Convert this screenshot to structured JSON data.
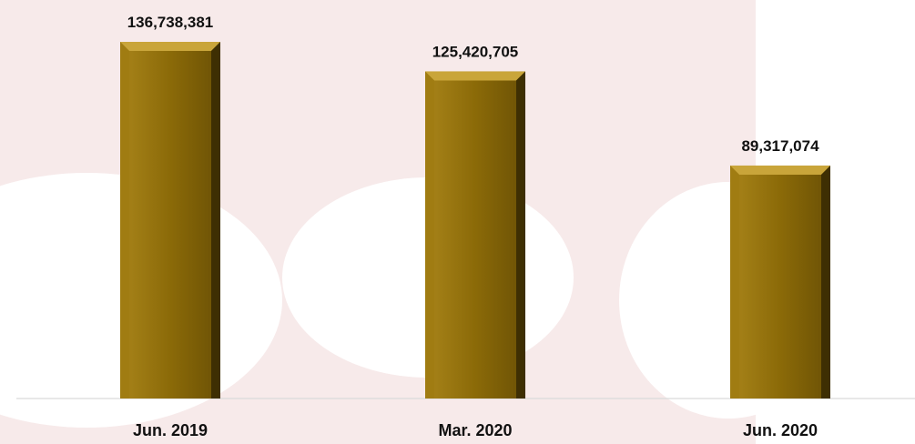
{
  "chart_data": {
    "type": "bar",
    "categories": [
      "Jun. 2019",
      "Mar. 2020",
      "Jun. 2020"
    ],
    "values": [
      136738381,
      125420705,
      89317074
    ],
    "value_labels": [
      "136,738,381",
      "125,420,705",
      "89,317,074"
    ],
    "title": "",
    "xlabel": "",
    "ylabel": "",
    "ylim": [
      0,
      150000000
    ],
    "grid": false,
    "legend": "none",
    "colors": {
      "bar": "#8B6A08",
      "bar_light": "#C9A53A",
      "bar_dark": "#3E2F03",
      "background_tint": "#F7EAEA",
      "axis": "#D9D9D9"
    }
  }
}
